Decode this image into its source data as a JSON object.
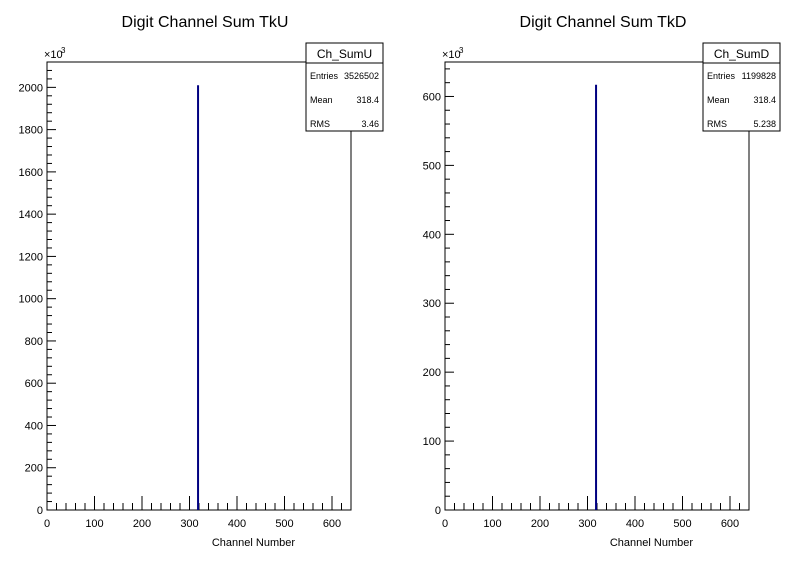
{
  "chart_data": [
    {
      "type": "bar",
      "title": "Digit Channel Sum TkU",
      "xlabel": "Channel Number",
      "ylabel": "",
      "y_multiplier": "×10",
      "y_multiplier_exp": "3",
      "xlim": [
        0,
        640
      ],
      "ylim": [
        0,
        2120
      ],
      "x_ticks": [
        "0",
        "100",
        "200",
        "300",
        "400",
        "500",
        "600"
      ],
      "y_ticks": [
        "0",
        "200",
        "400",
        "600",
        "800",
        "1000",
        "1200",
        "1400",
        "1600",
        "1800",
        "2000"
      ],
      "x": [
        318
      ],
      "values": [
        2010
      ],
      "color": "#000080",
      "stats": {
        "name": "Ch_SumU",
        "entries_label": "Entries",
        "entries": "3526502",
        "mean_label": "Mean",
        "mean": "318.4",
        "rms_label": "RMS",
        "rms": "3.46"
      }
    },
    {
      "type": "bar",
      "title": "Digit Channel Sum TkD",
      "xlabel": "Channel Number",
      "ylabel": "",
      "y_multiplier": "×10",
      "y_multiplier_exp": "3",
      "xlim": [
        0,
        640
      ],
      "ylim": [
        0,
        650
      ],
      "x_ticks": [
        "0",
        "100",
        "200",
        "300",
        "400",
        "500",
        "600"
      ],
      "y_ticks": [
        "0",
        "100",
        "200",
        "300",
        "400",
        "500",
        "600"
      ],
      "x": [
        318
      ],
      "values": [
        617
      ],
      "color": "#000080",
      "stats": {
        "name": "Ch_SumD",
        "entries_label": "Entries",
        "entries": "1199828",
        "mean_label": "Mean",
        "mean": "318.4",
        "rms_label": "RMS",
        "rms": "5.238"
      }
    }
  ]
}
